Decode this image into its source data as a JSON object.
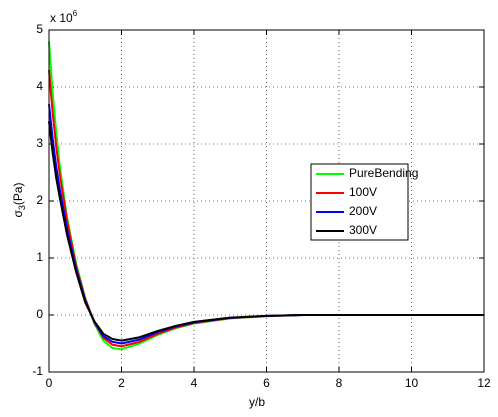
{
  "chart_data": {
    "type": "line",
    "xlabel": "y/b",
    "ylabel": {
      "main": "σ",
      "sub": "3",
      "unit": "(Pa)"
    },
    "y_scale_label": {
      "base": "x 10",
      "exponent": "6"
    },
    "x": [
      0,
      0.1,
      0.2,
      0.3,
      0.5,
      0.75,
      1,
      1.25,
      1.5,
      1.75,
      2,
      2.5,
      3,
      3.5,
      4,
      5,
      6,
      7,
      8,
      10,
      12
    ],
    "series": [
      {
        "name": "PureBending",
        "color": "#00ff00",
        "values": [
          4.8,
          3.9,
          3.2,
          2.6,
          1.7,
          0.9,
          0.3,
          -0.15,
          -0.45,
          -0.58,
          -0.6,
          -0.5,
          -0.35,
          -0.23,
          -0.15,
          -0.06,
          -0.02,
          0,
          0,
          0,
          0
        ]
      },
      {
        "name": "100V",
        "color": "#ff0000",
        "values": [
          4.3,
          3.55,
          2.95,
          2.45,
          1.65,
          0.85,
          0.28,
          -0.13,
          -0.4,
          -0.52,
          -0.55,
          -0.47,
          -0.33,
          -0.22,
          -0.14,
          -0.055,
          -0.02,
          0,
          0,
          0,
          0
        ]
      },
      {
        "name": "200V",
        "color": "#0000ff",
        "values": [
          3.7,
          3.1,
          2.6,
          2.2,
          1.5,
          0.8,
          0.25,
          -0.12,
          -0.37,
          -0.47,
          -0.5,
          -0.43,
          -0.3,
          -0.2,
          -0.13,
          -0.05,
          -0.015,
          0,
          0,
          0,
          0
        ]
      },
      {
        "name": "300V",
        "color": "#000000",
        "values": [
          3.4,
          2.85,
          2.4,
          2.05,
          1.4,
          0.75,
          0.22,
          -0.11,
          -0.33,
          -0.42,
          -0.45,
          -0.39,
          -0.28,
          -0.19,
          -0.12,
          -0.045,
          -0.015,
          0,
          0,
          0,
          0
        ]
      }
    ],
    "xlim": [
      0,
      12
    ],
    "xticks": [
      0,
      2,
      4,
      6,
      8,
      10,
      12
    ],
    "ylim": [
      -1,
      5
    ],
    "yticks": [
      -1,
      0,
      1,
      2,
      3,
      4,
      5
    ],
    "grid": true,
    "legend": "east"
  }
}
